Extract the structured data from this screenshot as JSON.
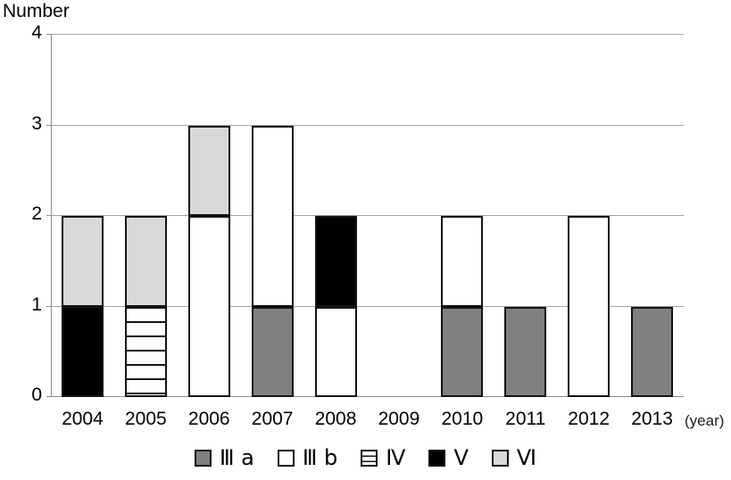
{
  "title": "Number",
  "x_axis": {
    "unit_label": "(year)"
  },
  "colors": {
    "IIIa": "#808080",
    "IIIb": "#ffffff",
    "IV": "#ffffff",
    "V": "#000000",
    "VI": "#d9d9d9",
    "border": "#141414",
    "gridline": "#a3a3a3"
  },
  "chart_data": {
    "type": "bar",
    "stacked": true,
    "title": "Number",
    "ylabel": "Number",
    "xlabel": "(year)",
    "categories": [
      "2004",
      "2005",
      "2006",
      "2007",
      "2008",
      "2009",
      "2010",
      "2011",
      "2012",
      "2013"
    ],
    "series": [
      {
        "name": "Ⅲ a",
        "key": "IIIa",
        "color": "#808080",
        "pattern": "solid",
        "values": [
          0,
          0,
          0,
          1,
          0,
          0,
          1,
          1,
          0,
          1
        ]
      },
      {
        "name": "Ⅲ b",
        "key": "IIIb",
        "color": "#ffffff",
        "pattern": "solid",
        "values": [
          0,
          0,
          2,
          2,
          1,
          0,
          1,
          0,
          2,
          0
        ]
      },
      {
        "name": "Ⅳ",
        "key": "IV",
        "color": "#ffffff",
        "pattern": "horizontal-stripes",
        "values": [
          0,
          1,
          0,
          0,
          0,
          0,
          0,
          0,
          0,
          0
        ]
      },
      {
        "name": "Ⅴ",
        "key": "V",
        "color": "#000000",
        "pattern": "solid",
        "values": [
          1,
          0,
          0,
          0,
          1,
          0,
          0,
          0,
          0,
          0
        ]
      },
      {
        "name": "Ⅵ",
        "key": "VI",
        "color": "#d9d9d9",
        "pattern": "solid",
        "values": [
          1,
          1,
          1,
          0,
          0,
          0,
          0,
          0,
          0,
          0
        ]
      }
    ],
    "stack_totals": [
      2,
      2,
      3,
      3,
      2,
      0,
      2,
      1,
      2,
      1
    ],
    "ylim": [
      0,
      4
    ],
    "y_ticks": [
      0,
      1,
      2,
      3,
      4
    ],
    "grid": true,
    "legend_position": "bottom"
  }
}
